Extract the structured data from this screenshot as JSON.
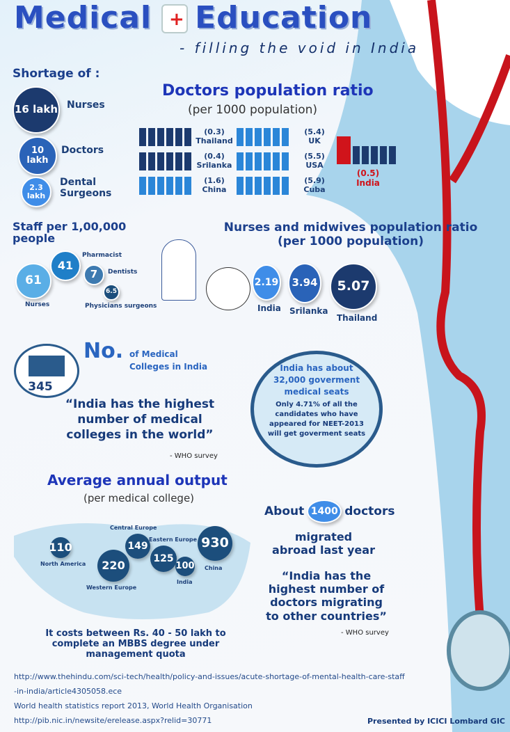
{
  "header": {
    "title_a": "Medical",
    "title_b": "Education",
    "subtitle": "- filling the void in India"
  },
  "shortage": {
    "heading": "Shortage of :",
    "items": [
      {
        "value": "16 lakh",
        "label": "Nurses"
      },
      {
        "value": "10 lakh",
        "label": "Doctors"
      },
      {
        "value": "2.3 lakh",
        "label": "Dental Surgeons"
      }
    ]
  },
  "doctors_ratio": {
    "title": "Doctors population ratio",
    "subtitle": "(per 1000 population)",
    "items": [
      {
        "value": "(0.3)",
        "country": "Thailand"
      },
      {
        "value": "(0.4)",
        "country": "Srilanka"
      },
      {
        "value": "(1.6)",
        "country": "China"
      },
      {
        "value": "(5.4)",
        "country": "UK"
      },
      {
        "value": "(5.5)",
        "country": "USA"
      },
      {
        "value": "(5.9)",
        "country": "Cuba"
      }
    ],
    "india": {
      "value": "(0.5)",
      "country": "India"
    },
    "colors": {
      "dark": "#1c3a6e",
      "light": "#2b86d8",
      "india": "#d0141b"
    }
  },
  "staff": {
    "title": "Staff per 1,00,000 people",
    "items": [
      {
        "value": "61",
        "label": "Nurses"
      },
      {
        "value": "41",
        "label": "Pharmacist"
      },
      {
        "value": "7",
        "label": "Dentists"
      },
      {
        "value": "6.5",
        "label": "Physicians surgeons"
      }
    ]
  },
  "nurses_ratio": {
    "title": "Nurses and midwives population ratio",
    "subtitle": "(per 1000 population)",
    "items": [
      {
        "value": "2.19",
        "label": "India"
      },
      {
        "value": "3.94",
        "label": "Srilanka"
      },
      {
        "value": "5.07",
        "label": "Thailand"
      }
    ]
  },
  "colleges": {
    "big": "No.",
    "rest": "of Medical Colleges in India",
    "count": "345",
    "quote": "“India has the highest number of medical colleges in the world”",
    "source": "- WHO survey"
  },
  "seats": {
    "line1": "India has about 32,000 goverment medical seats",
    "line2": "Only 4.71% of all the candidates who have appeared for NEET-2013 will get goverment seats"
  },
  "output": {
    "title": "Average annual output",
    "subtitle": "(per medical college)",
    "items": [
      {
        "value": "110",
        "label": "North America"
      },
      {
        "value": "220",
        "label": "Western Europe"
      },
      {
        "value": "149",
        "label": "Central Europe"
      },
      {
        "value": "125",
        "label": "Eastern Europe"
      },
      {
        "value": "100",
        "label": "India"
      },
      {
        "value": "930",
        "label": "China"
      }
    ],
    "cost": "It costs between Rs. 40 - 50 lakh to complete an MBBS degree under management quota"
  },
  "migration": {
    "pre": "About",
    "value": "1400",
    "post": "doctors",
    "line2": "migrated abroad last year",
    "quote": "“India has the highest number of doctors migrating to other countries”",
    "source": "- WHO survey"
  },
  "sources": [
    "http://www.thehindu.com/sci-tech/health/policy-and-issues/acute-shortage-of-mental-health-care-staff",
    "-in-india/article4305058.ece",
    "World health statistics report 2013, World Health Organisation",
    "http://pib.nic.in/newsite/erelease.aspx?relid=30771"
  ],
  "footer": {
    "presented": "Presented by ICICI Lombard GIC"
  }
}
